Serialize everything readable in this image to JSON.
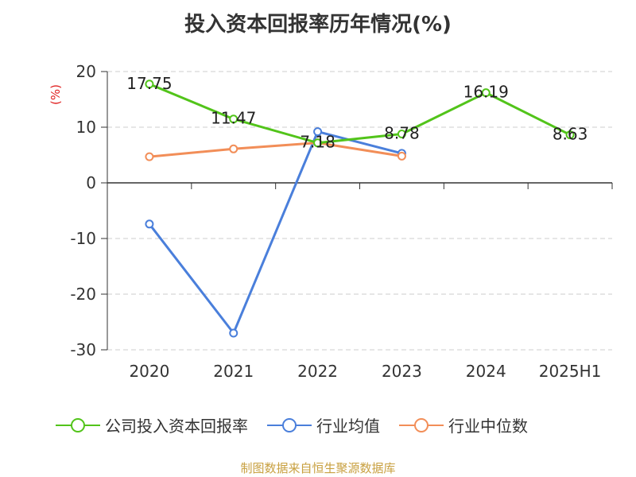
{
  "page": {
    "title": "投入资本回报率历年情况(%)",
    "source": "制图数据来自恒生聚源数据库"
  },
  "chart_data": {
    "type": "line",
    "title": "投入资本回报率历年情况(%)",
    "ylabel": "(%)",
    "categories": [
      "2020",
      "2021",
      "2022",
      "2023",
      "2024",
      "2025H1"
    ],
    "ylim": [
      -30,
      20
    ],
    "yticks": [
      "20",
      "10",
      "0",
      "-10",
      "-20",
      "-30"
    ],
    "grid": true,
    "legend_position": "bottom",
    "series": [
      {
        "name": "公司投入资本回报率",
        "color": "#52c41a",
        "values": [
          17.75,
          11.47,
          7.18,
          8.78,
          16.19,
          8.63
        ],
        "labels": [
          "17.75",
          "11.47",
          "7.18",
          "8.78",
          "16.19",
          "8.63"
        ]
      },
      {
        "name": "行业均值",
        "color": "#4a7fdb",
        "values": [
          -7.4,
          -27.0,
          9.2,
          5.3,
          null,
          null
        ]
      },
      {
        "name": "行业中位数",
        "color": "#f28e58",
        "values": [
          4.7,
          6.1,
          7.2,
          4.8,
          null,
          null
        ]
      }
    ]
  }
}
